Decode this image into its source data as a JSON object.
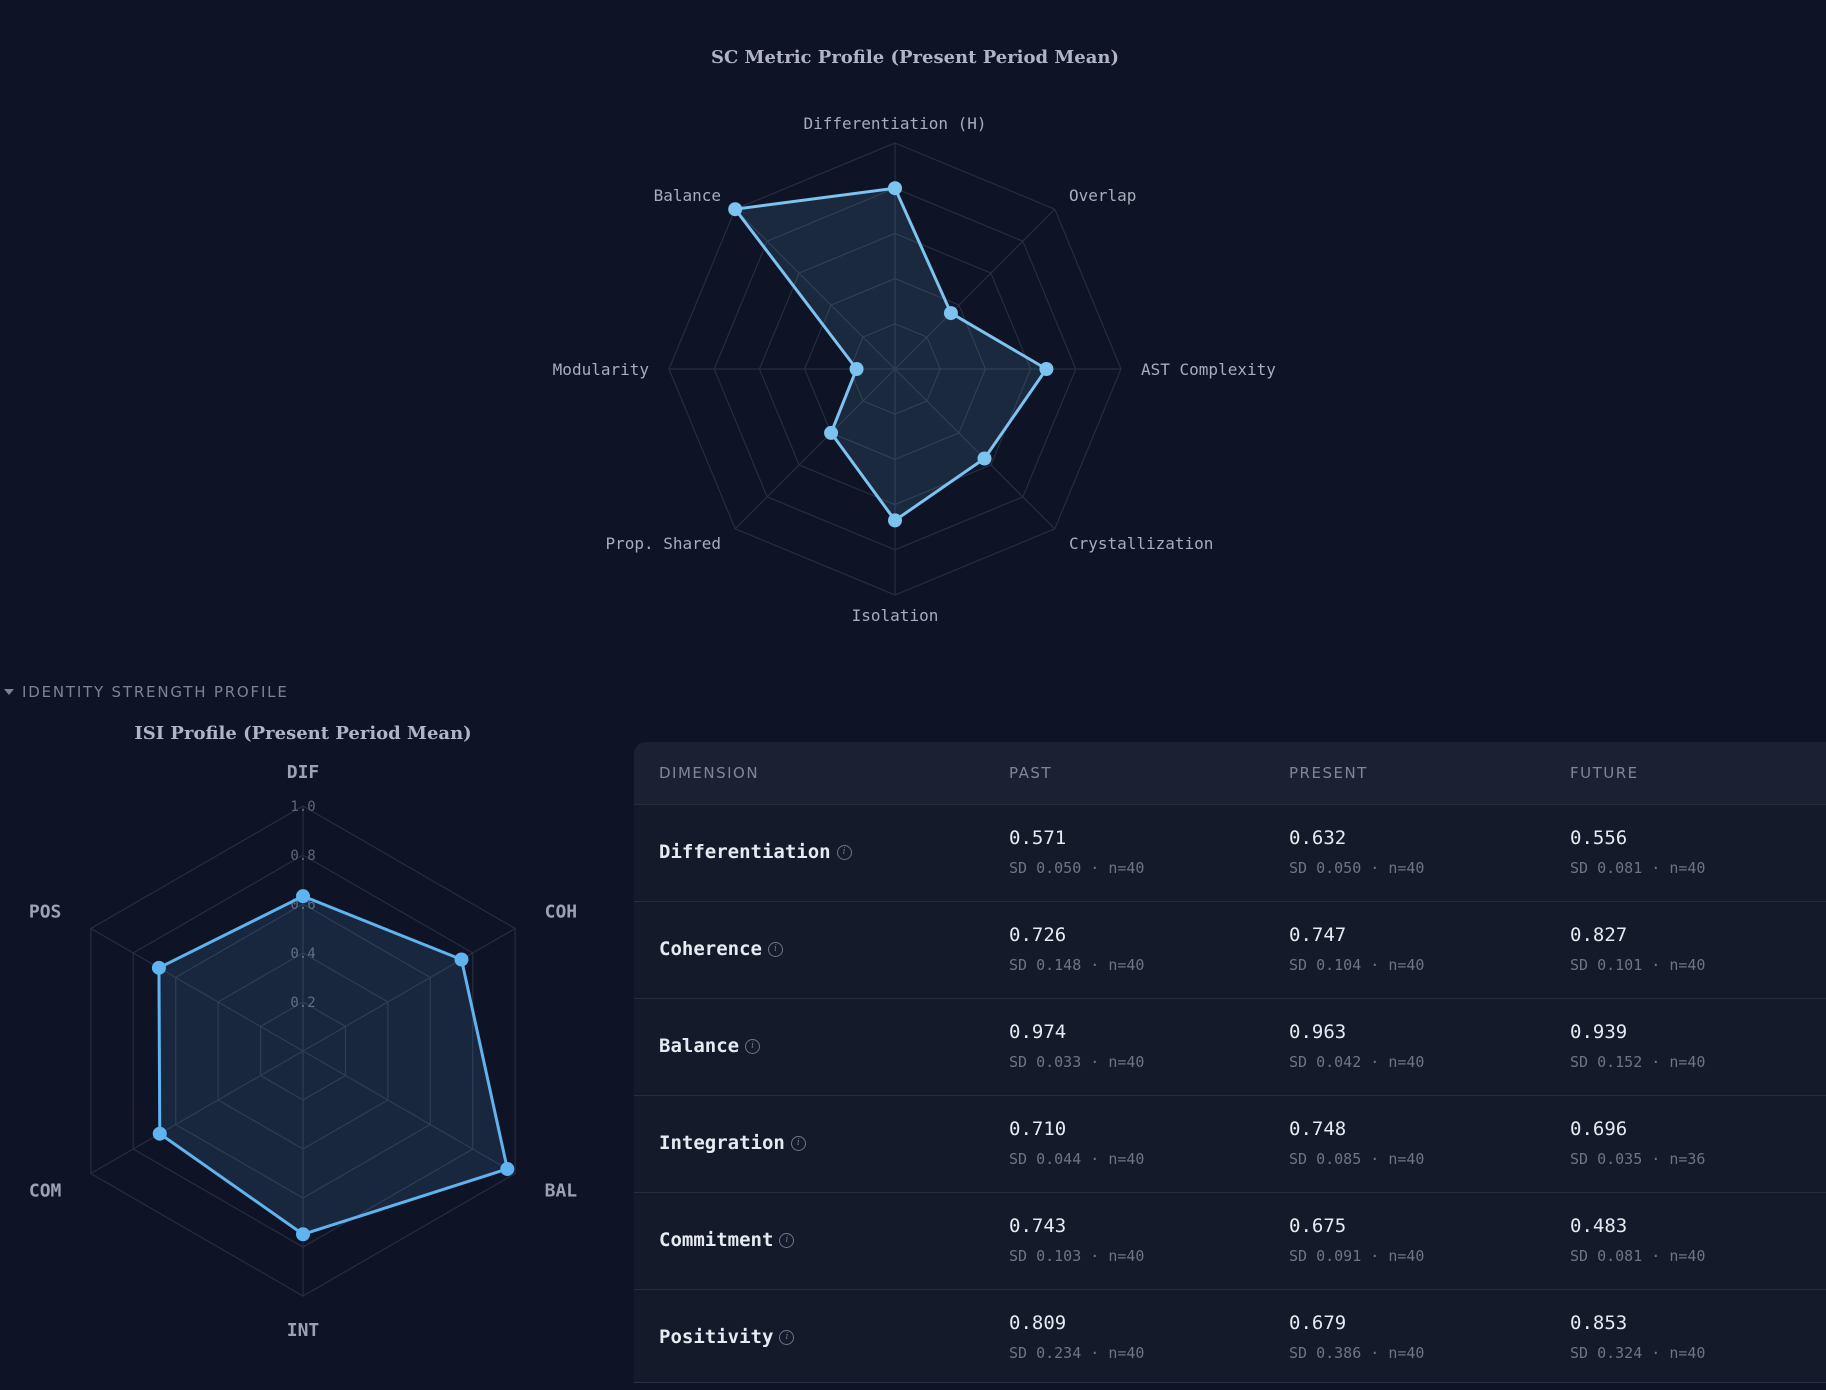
{
  "section_header": "IDENTITY STRENGTH PROFILE",
  "chart_data": [
    {
      "type": "radar",
      "title": "SC Metric Profile (Present Period Mean)",
      "axes": [
        "Differentiation (H)",
        "Overlap",
        "AST Complexity",
        "Crystallization",
        "Isolation",
        "Prop. Shared",
        "Modularity",
        "Balance"
      ],
      "values": [
        0.8,
        0.35,
        0.67,
        0.56,
        0.67,
        0.4,
        0.17,
        1.0
      ],
      "range": [
        0,
        1
      ],
      "color": "#7cc3f0",
      "grid": true
    },
    {
      "type": "radar",
      "title": "ISI Profile (Present Period Mean)",
      "axes": [
        "DIF",
        "COH",
        "BAL",
        "INT",
        "COM",
        "POS"
      ],
      "values": [
        0.632,
        0.747,
        0.963,
        0.748,
        0.675,
        0.679
      ],
      "range": [
        0,
        1
      ],
      "ticks": [
        "0.2",
        "0.4",
        "0.6",
        "0.8",
        "1.0"
      ],
      "color": "#5fb3ef",
      "grid": true
    }
  ],
  "table": {
    "headers": [
      "DIMENSION",
      "PAST",
      "PRESENT",
      "FUTURE"
    ],
    "rows": [
      {
        "name": "Differentiation",
        "past": {
          "mean": "0.571",
          "sd": "SD 0.050 · n=40"
        },
        "present": {
          "mean": "0.632",
          "sd": "SD 0.050 · n=40"
        },
        "future": {
          "mean": "0.556",
          "sd": "SD 0.081 · n=40"
        }
      },
      {
        "name": "Coherence",
        "past": {
          "mean": "0.726",
          "sd": "SD 0.148 · n=40"
        },
        "present": {
          "mean": "0.747",
          "sd": "SD 0.104 · n=40"
        },
        "future": {
          "mean": "0.827",
          "sd": "SD 0.101 · n=40"
        }
      },
      {
        "name": "Balance",
        "past": {
          "mean": "0.974",
          "sd": "SD 0.033 · n=40"
        },
        "present": {
          "mean": "0.963",
          "sd": "SD 0.042 · n=40"
        },
        "future": {
          "mean": "0.939",
          "sd": "SD 0.152 · n=40"
        }
      },
      {
        "name": "Integration",
        "past": {
          "mean": "0.710",
          "sd": "SD 0.044 · n=40"
        },
        "present": {
          "mean": "0.748",
          "sd": "SD 0.085 · n=40"
        },
        "future": {
          "mean": "0.696",
          "sd": "SD 0.035 · n=36"
        }
      },
      {
        "name": "Commitment",
        "past": {
          "mean": "0.743",
          "sd": "SD 0.103 · n=40"
        },
        "present": {
          "mean": "0.675",
          "sd": "SD 0.091 · n=40"
        },
        "future": {
          "mean": "0.483",
          "sd": "SD 0.081 · n=40"
        }
      },
      {
        "name": "Positivity",
        "past": {
          "mean": "0.809",
          "sd": "SD 0.234 · n=40"
        },
        "present": {
          "mean": "0.679",
          "sd": "SD 0.386 · n=40"
        },
        "future": {
          "mean": "0.853",
          "sd": "SD 0.324 · n=40"
        }
      }
    ]
  }
}
